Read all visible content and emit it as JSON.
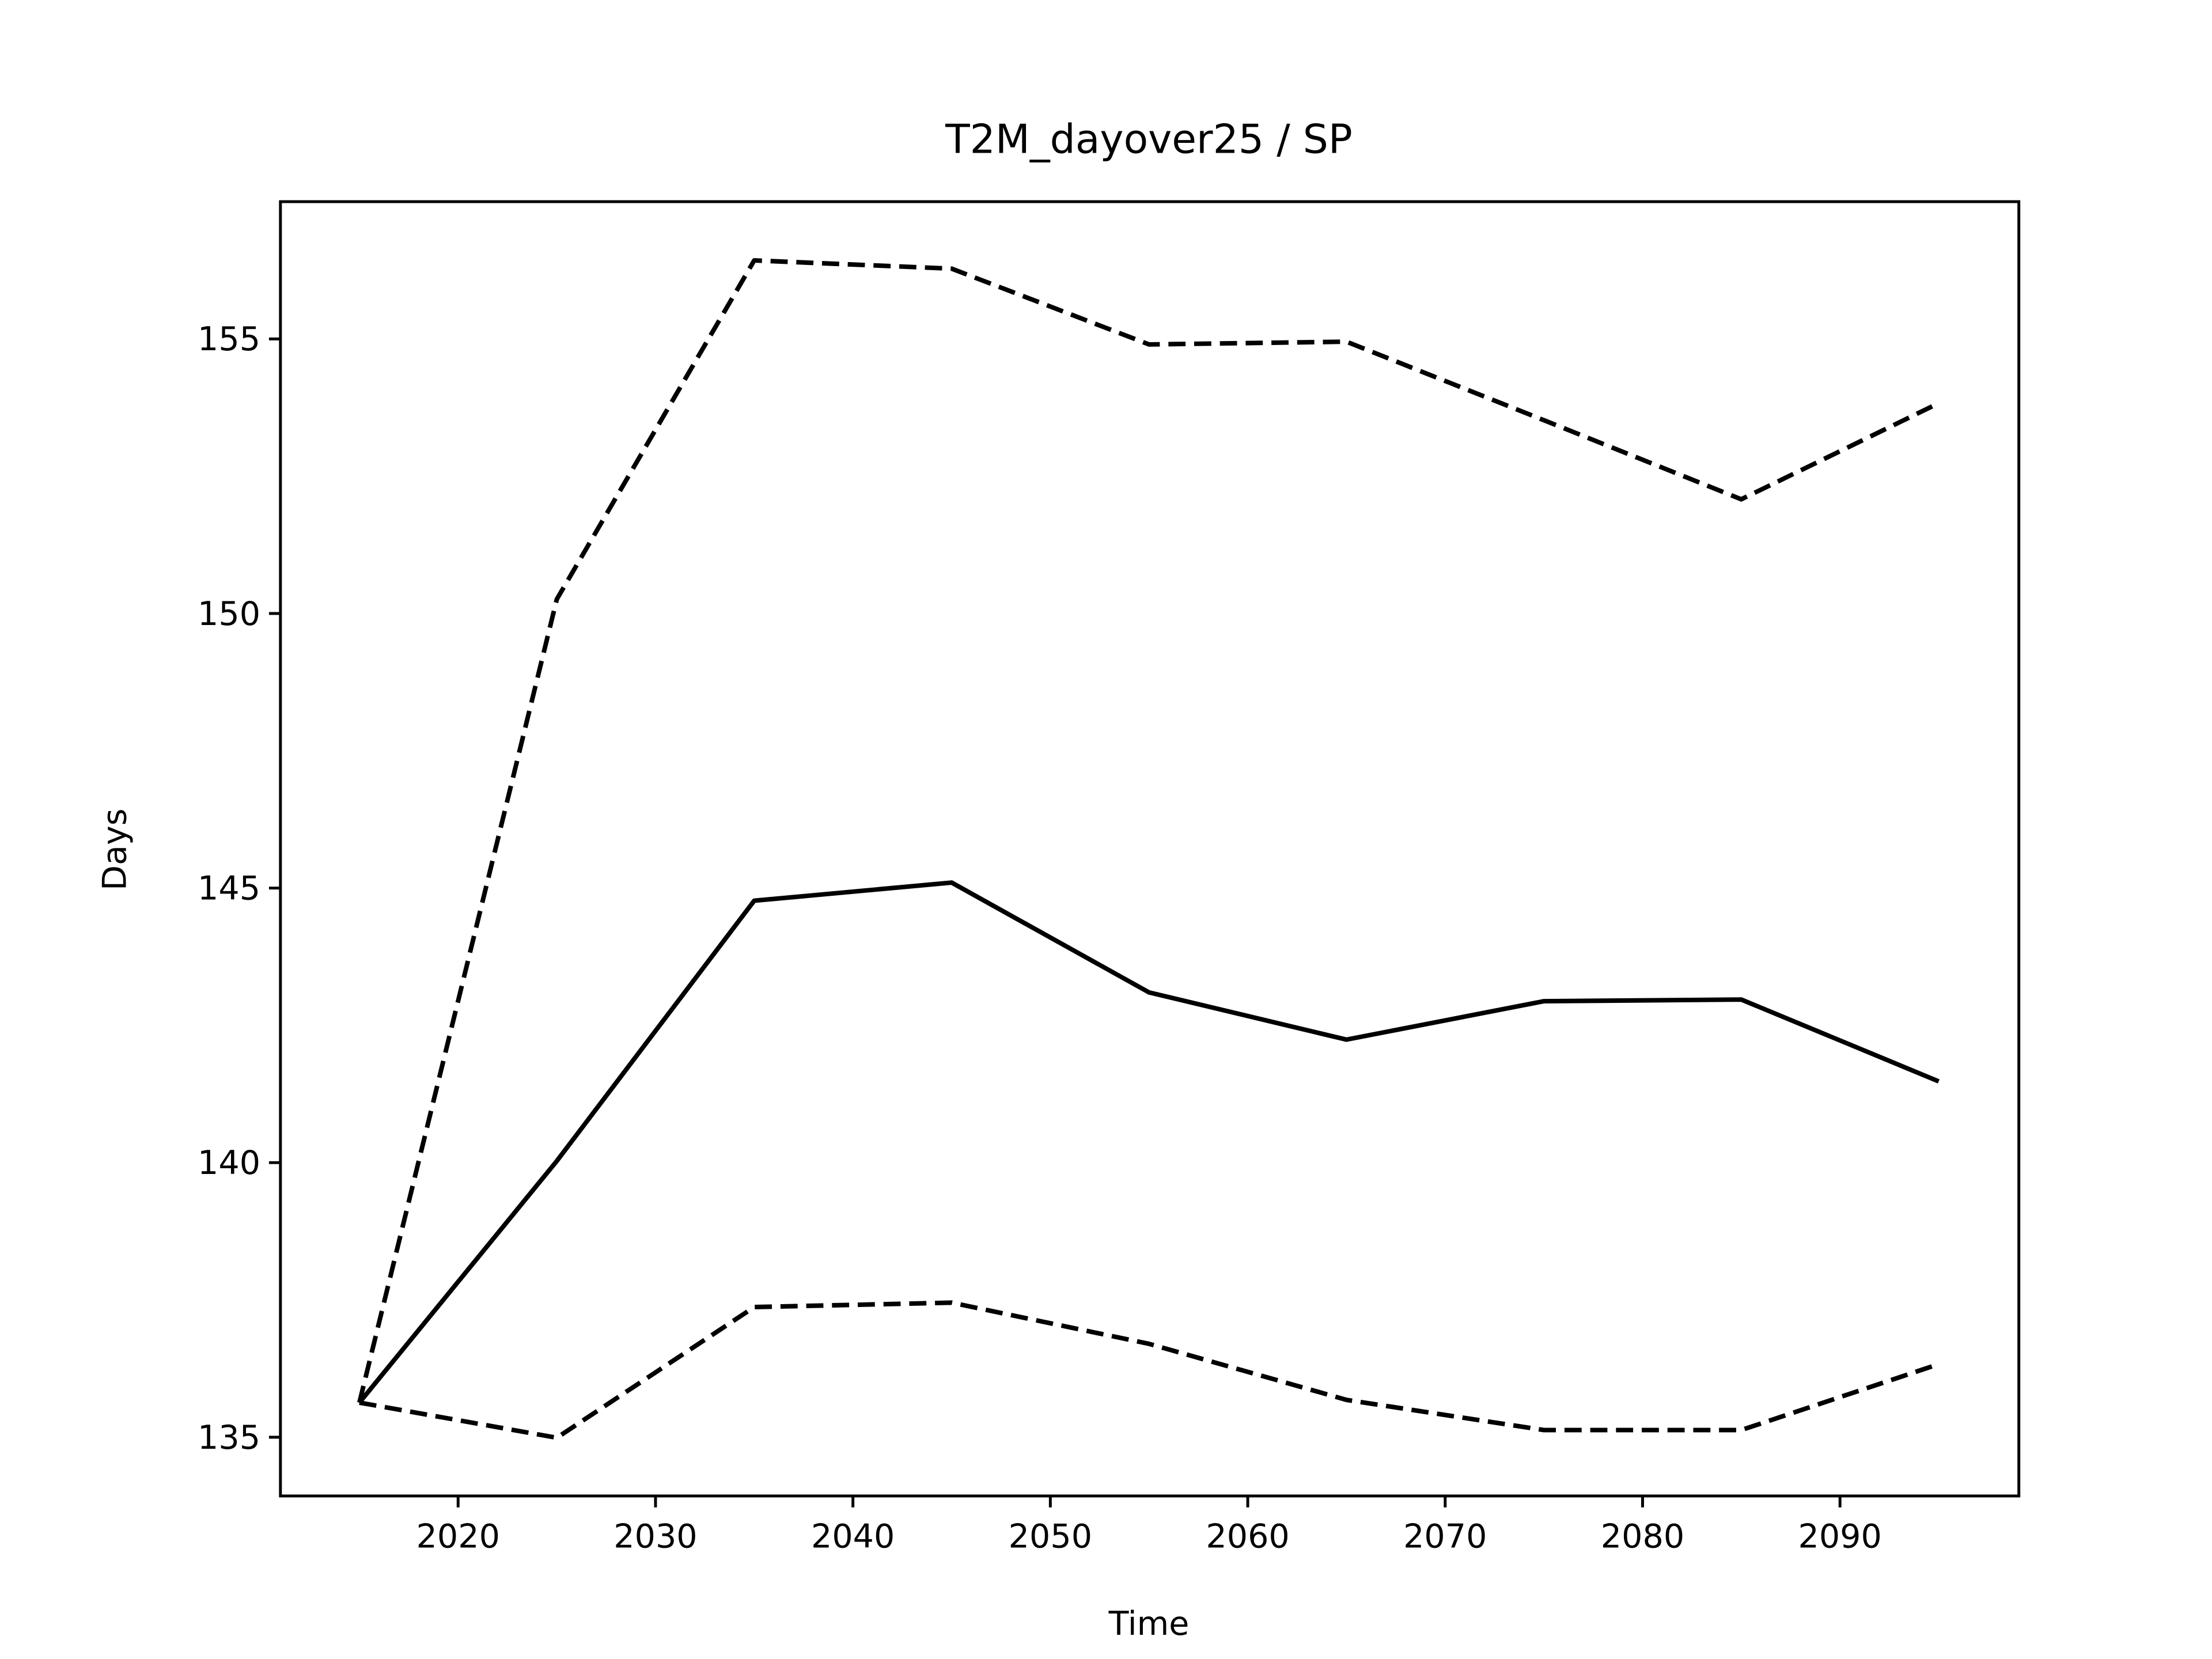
{
  "chart_data": {
    "type": "line",
    "title": "T2M_dayover25 / SP",
    "xlabel": "Time",
    "ylabel": "Days",
    "x": [
      2015,
      2025,
      2035,
      2045,
      2055,
      2065,
      2075,
      2085,
      2095
    ],
    "series": [
      {
        "color": "#000000",
        "dashed": false,
        "values": [
          135.63,
          140.03,
          144.77,
          145.1,
          143.1,
          142.24,
          142.94,
          142.97,
          141.48
        ]
      },
      {
        "color": "#000000",
        "dashed": true,
        "values": [
          135.63,
          150.26,
          156.43,
          156.28,
          154.9,
          154.95,
          153.52,
          152.08,
          153.83
        ]
      },
      {
        "color": "#000000",
        "dashed": true,
        "values": [
          135.63,
          134.99,
          137.37,
          137.45,
          136.7,
          135.68,
          135.13,
          135.13,
          136.33
        ]
      }
    ],
    "xlim": [
      2011.0,
      2099.06
    ],
    "ylim": [
      133.93,
      157.5
    ],
    "xticks": [
      2020,
      2030,
      2040,
      2050,
      2060,
      2070,
      2080,
      2090
    ],
    "yticks": [
      135,
      140,
      145,
      150,
      155
    ]
  }
}
